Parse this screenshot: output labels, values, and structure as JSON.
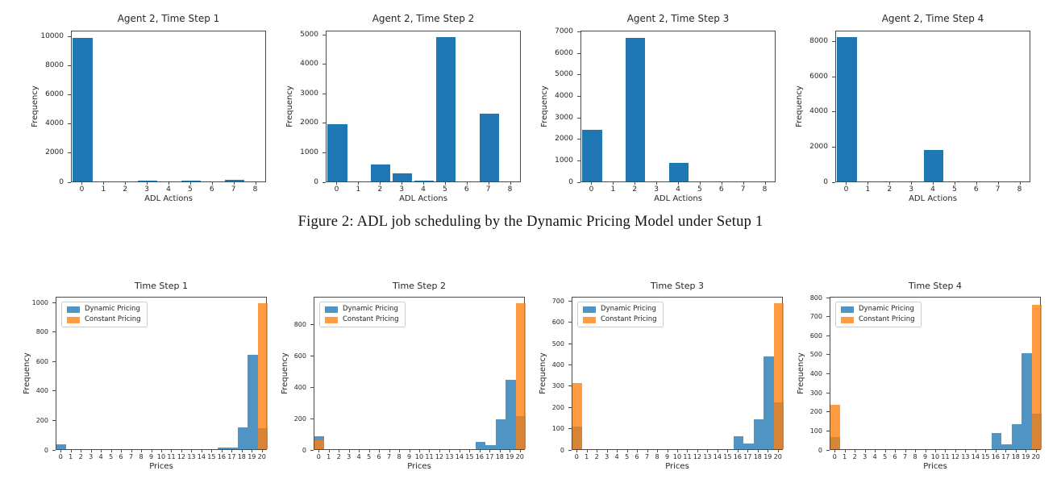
{
  "caption": "Figure 2: ADL job scheduling by the Dynamic Pricing Model under Setup 1",
  "colors": {
    "row1_bar": "#1f77b4",
    "dynamic_fill": "rgba(31,119,180,0.78)",
    "constant_fill": "rgba(255,127,14,0.78)",
    "axis": "#4a4a4a",
    "text": "#262626"
  },
  "chart_data": [
    {
      "type": "bar",
      "row": 1,
      "title": "Agent 2, Time Step 1",
      "xlabel": "ADL Actions",
      "ylabel": "Frequency",
      "categories": [
        "0",
        "1",
        "2",
        "3",
        "4",
        "5",
        "6",
        "7",
        "8"
      ],
      "values": [
        9850,
        0,
        0,
        20,
        0,
        30,
        0,
        100,
        0
      ],
      "bar_color": "#1f77b4",
      "yticks": [
        0,
        2000,
        4000,
        6000,
        8000,
        10000
      ],
      "ylim": [
        0,
        10400
      ],
      "grid": false
    },
    {
      "type": "bar",
      "row": 1,
      "title": "Agent 2, Time Step 2",
      "xlabel": "ADL Actions",
      "ylabel": "Frequency",
      "categories": [
        "0",
        "1",
        "2",
        "3",
        "4",
        "5",
        "6",
        "7",
        "8"
      ],
      "values": [
        1950,
        0,
        580,
        280,
        30,
        4900,
        0,
        2300,
        0
      ],
      "bar_color": "#1f77b4",
      "yticks": [
        0,
        1000,
        2000,
        3000,
        4000,
        5000
      ],
      "ylim": [
        0,
        5150
      ],
      "grid": false
    },
    {
      "type": "bar",
      "row": 1,
      "title": "Agent 2, Time Step 3",
      "xlabel": "ADL Actions",
      "ylabel": "Frequency",
      "categories": [
        "0",
        "1",
        "2",
        "3",
        "4",
        "5",
        "6",
        "7",
        "8"
      ],
      "values": [
        2400,
        0,
        6700,
        0,
        850,
        0,
        0,
        0,
        0
      ],
      "bar_color": "#1f77b4",
      "yticks": [
        0,
        1000,
        2000,
        3000,
        4000,
        5000,
        6000,
        7000
      ],
      "ylim": [
        0,
        7060
      ],
      "grid": false
    },
    {
      "type": "bar",
      "row": 1,
      "title": "Agent 2, Time Step 4",
      "xlabel": "ADL Actions",
      "ylabel": "Frequency",
      "categories": [
        "0",
        "1",
        "2",
        "3",
        "4",
        "5",
        "6",
        "7",
        "8"
      ],
      "values": [
        8200,
        0,
        0,
        0,
        1800,
        0,
        0,
        0,
        0
      ],
      "bar_color": "#1f77b4",
      "yticks": [
        0,
        2000,
        4000,
        6000,
        8000
      ],
      "ylim": [
        0,
        8620
      ],
      "grid": false
    },
    {
      "type": "bar",
      "row": 2,
      "title": "Time Step 1",
      "xlabel": "Prices",
      "ylabel": "Frequency",
      "legend_position": "upper-left",
      "categories": [
        "0",
        "1",
        "2",
        "3",
        "4",
        "5",
        "6",
        "7",
        "8",
        "9",
        "10",
        "11",
        "12",
        "13",
        "14",
        "15",
        "16",
        "17",
        "18",
        "19",
        "20"
      ],
      "series": [
        {
          "name": "Dynamic Pricing",
          "color": "rgba(31,119,180,0.78)",
          "values": [
            35,
            0,
            0,
            0,
            0,
            0,
            0,
            0,
            0,
            0,
            0,
            0,
            0,
            0,
            0,
            0,
            10,
            12,
            150,
            640,
            145
          ]
        },
        {
          "name": "Constant Pricing",
          "color": "rgba(255,127,14,0.78)",
          "values": [
            0,
            0,
            0,
            0,
            0,
            0,
            0,
            0,
            0,
            0,
            0,
            0,
            0,
            0,
            0,
            0,
            0,
            0,
            0,
            0,
            990
          ]
        }
      ],
      "yticks": [
        0,
        200,
        400,
        600,
        800,
        1000
      ],
      "ylim": [
        0,
        1040
      ],
      "grid": false
    },
    {
      "type": "bar",
      "row": 2,
      "title": "Time Step 2",
      "xlabel": "Prices",
      "ylabel": "Frequency",
      "legend_position": "upper-left",
      "categories": [
        "0",
        "1",
        "2",
        "3",
        "4",
        "5",
        "6",
        "7",
        "8",
        "9",
        "10",
        "11",
        "12",
        "13",
        "14",
        "15",
        "16",
        "17",
        "18",
        "19",
        "20"
      ],
      "series": [
        {
          "name": "Dynamic Pricing",
          "color": "rgba(31,119,180,0.78)",
          "values": [
            80,
            0,
            0,
            0,
            0,
            0,
            0,
            0,
            0,
            0,
            0,
            0,
            0,
            0,
            0,
            0,
            45,
            25,
            190,
            440,
            210
          ]
        },
        {
          "name": "Constant Pricing",
          "color": "rgba(255,127,14,0.78)",
          "values": [
            55,
            0,
            0,
            0,
            0,
            0,
            0,
            0,
            0,
            0,
            0,
            0,
            0,
            0,
            0,
            0,
            0,
            0,
            0,
            0,
            930
          ]
        }
      ],
      "yticks": [
        0,
        200,
        400,
        600,
        800
      ],
      "ylim": [
        0,
        975
      ],
      "grid": false
    },
    {
      "type": "bar",
      "row": 2,
      "title": "Time Step 3",
      "xlabel": "Prices",
      "ylabel": "Frequency",
      "legend_position": "upper-left",
      "categories": [
        "0",
        "1",
        "2",
        "3",
        "4",
        "5",
        "6",
        "7",
        "8",
        "9",
        "10",
        "11",
        "12",
        "13",
        "14",
        "15",
        "16",
        "17",
        "18",
        "19",
        "20"
      ],
      "series": [
        {
          "name": "Dynamic Pricing",
          "color": "rgba(31,119,180,0.78)",
          "values": [
            105,
            0,
            0,
            0,
            0,
            0,
            0,
            0,
            0,
            0,
            0,
            0,
            0,
            0,
            0,
            0,
            60,
            25,
            140,
            435,
            220
          ]
        },
        {
          "name": "Constant Pricing",
          "color": "rgba(255,127,14,0.78)",
          "values": [
            310,
            0,
            0,
            0,
            0,
            0,
            0,
            0,
            0,
            0,
            0,
            0,
            0,
            0,
            0,
            0,
            0,
            0,
            0,
            0,
            685
          ]
        }
      ],
      "yticks": [
        0,
        100,
        200,
        300,
        400,
        500,
        600,
        700
      ],
      "ylim": [
        0,
        720
      ],
      "grid": false
    },
    {
      "type": "bar",
      "row": 2,
      "title": "Time Step 4",
      "xlabel": "Prices",
      "ylabel": "Frequency",
      "legend_position": "upper-left",
      "categories": [
        "0",
        "1",
        "2",
        "3",
        "4",
        "5",
        "6",
        "7",
        "8",
        "9",
        "10",
        "11",
        "12",
        "13",
        "14",
        "15",
        "16",
        "17",
        "18",
        "19",
        "20"
      ],
      "series": [
        {
          "name": "Dynamic Pricing",
          "color": "rgba(31,119,180,0.78)",
          "values": [
            65,
            0,
            0,
            0,
            0,
            0,
            0,
            0,
            0,
            0,
            0,
            0,
            0,
            0,
            0,
            0,
            85,
            25,
            130,
            505,
            185
          ]
        },
        {
          "name": "Constant Pricing",
          "color": "rgba(255,127,14,0.78)",
          "values": [
            235,
            0,
            0,
            0,
            0,
            0,
            0,
            0,
            0,
            0,
            0,
            0,
            0,
            0,
            0,
            0,
            0,
            0,
            0,
            0,
            760
          ]
        }
      ],
      "yticks": [
        0,
        100,
        200,
        300,
        400,
        500,
        600,
        700,
        800
      ],
      "ylim": [
        0,
        805
      ],
      "grid": false
    }
  ]
}
